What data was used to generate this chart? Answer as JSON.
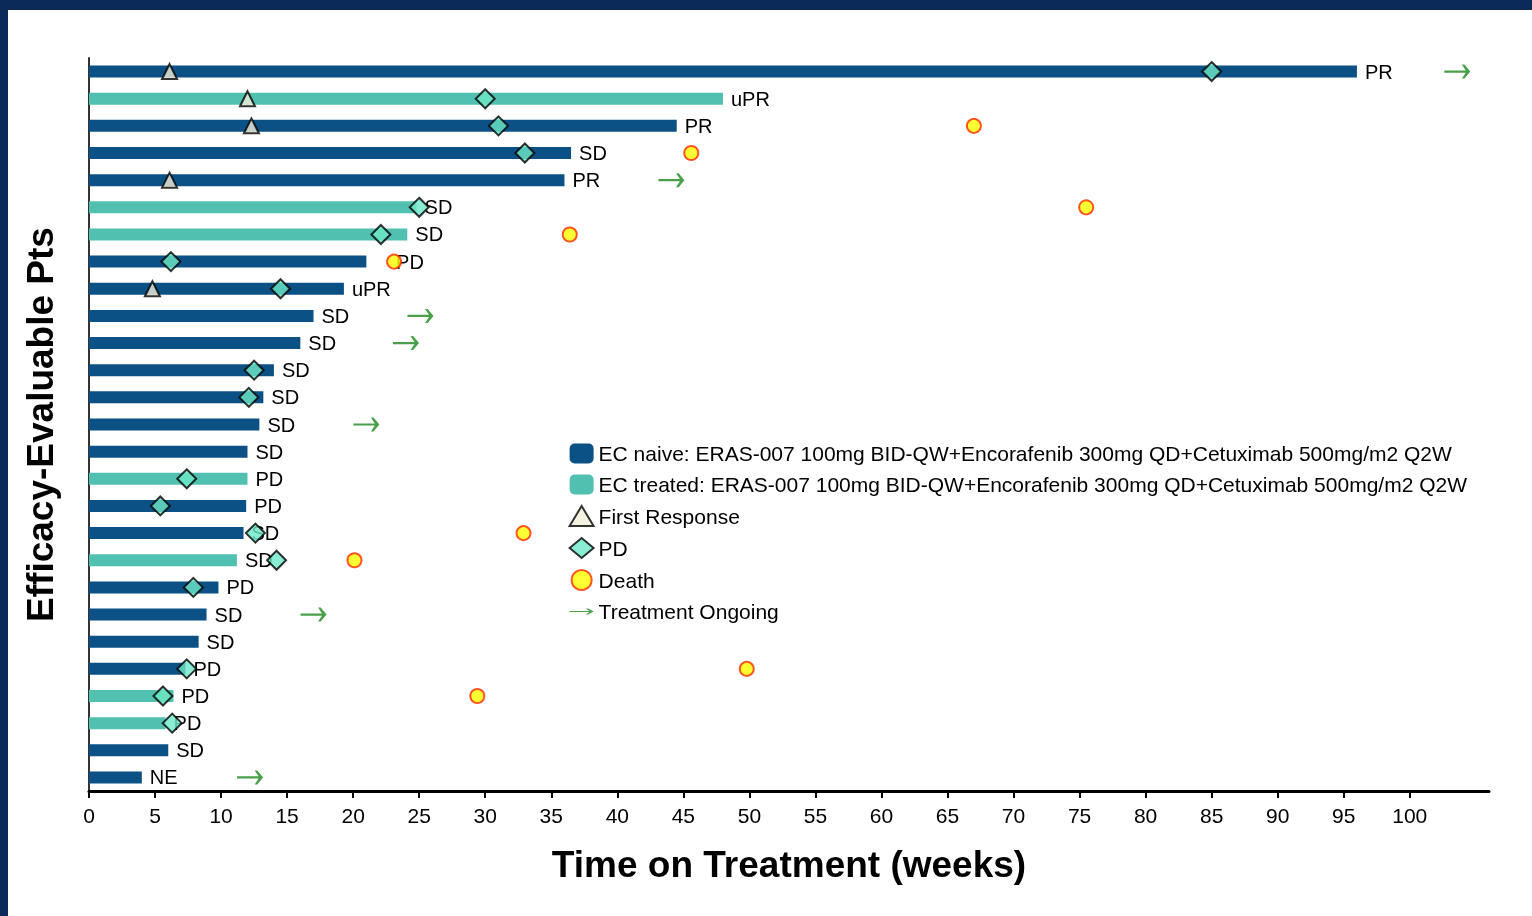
{
  "chart_data": {
    "type": "bar",
    "orientation": "horizontal",
    "xlabel": "Time on Treatment (weeks)",
    "ylabel": "Efficacy-Evaluable Pts",
    "categories": [
      null,
      null,
      null,
      null,
      null,
      null,
      null,
      null,
      null,
      null,
      null,
      null,
      null,
      null,
      null,
      null,
      null,
      null,
      null,
      null,
      null,
      null,
      null,
      null,
      null,
      null,
      null
    ],
    "xlim": [
      0,
      106
    ],
    "xticks": [
      0,
      5,
      10,
      15,
      20,
      25,
      30,
      35,
      40,
      45,
      50,
      55,
      60,
      65,
      70,
      75,
      80,
      85,
      90,
      95,
      100
    ],
    "legend": "right",
    "grid": false,
    "series": [
      {
        "name": "EC naive: ERAS-007 100mg BID-QW+Encorafenib 300mg QD+Cetuximab 500mg/m2 Q2W",
        "color": "#0b5185",
        "values": [
          96,
          null,
          44.5,
          36.5,
          36,
          null,
          null,
          21,
          19.3,
          17,
          16,
          14,
          13.2,
          12.9,
          12,
          null,
          11.9,
          11.7,
          null,
          9.8,
          8.9,
          8.3,
          7.3,
          null,
          null,
          6,
          4
        ],
        "value_labels": [
          "PR",
          null,
          "PR",
          "SD",
          "PR",
          null,
          null,
          "PD",
          "uPR",
          "SD",
          "SD",
          "SD",
          "SD",
          "SD",
          "SD",
          null,
          "PD",
          "SD",
          null,
          "PD",
          "SD",
          "SD",
          "PD",
          null,
          null,
          "SD",
          "NE"
        ]
      },
      {
        "name": "EC treated: ERAS-007 100mg BID-QW+Encorafenib 300mg QD+Cetuximab 500mg/m2 Q2W",
        "color": "#52c0b0",
        "values": [
          null,
          48,
          null,
          null,
          null,
          24.8,
          24.1,
          null,
          null,
          null,
          null,
          null,
          null,
          null,
          null,
          12,
          null,
          null,
          11.2,
          null,
          null,
          null,
          null,
          6.4,
          5.8,
          null,
          null
        ],
        "value_labels": [
          null,
          "uPR",
          null,
          null,
          null,
          "SD",
          "SD",
          null,
          null,
          null,
          null,
          null,
          null,
          null,
          null,
          "PD",
          null,
          null,
          "SD",
          null,
          null,
          null,
          null,
          "PD",
          "PD",
          null,
          null
        ]
      },
      {
        "name": "First Response",
        "type": "scatter",
        "marker": "triangle",
        "color": "#f3efd9",
        "values": [
          6.1,
          12,
          12.3,
          null,
          6.1,
          null,
          null,
          null,
          4.8,
          null,
          null,
          null,
          null,
          null,
          null,
          null,
          null,
          null,
          null,
          null,
          null,
          null,
          null,
          null,
          null,
          null,
          null
        ]
      },
      {
        "name": "PD",
        "type": "scatter",
        "marker": "diamond",
        "color": "#6ee8c8",
        "values": [
          85,
          30,
          31,
          33,
          null,
          25,
          22.1,
          6.2,
          14.5,
          null,
          null,
          12.5,
          12.1,
          null,
          null,
          7.4,
          5.4,
          12.6,
          14.2,
          7.9,
          null,
          null,
          7.4,
          5.6,
          6.3,
          null,
          null
        ]
      },
      {
        "name": "Death",
        "type": "scatter",
        "marker": "circle",
        "color": "#ffff00",
        "values": [
          null,
          null,
          67,
          45.6,
          null,
          75.5,
          36.4,
          23.1,
          null,
          null,
          null,
          null,
          null,
          null,
          null,
          null,
          null,
          32.9,
          20.1,
          null,
          null,
          null,
          49.8,
          29.4,
          null,
          null,
          null
        ]
      },
      {
        "name": "Treatment Ongoing",
        "type": "scatter",
        "color": "#1a8a1a",
        "values": [
          103.6,
          null,
          null,
          null,
          44.1,
          null,
          null,
          null,
          null,
          25.1,
          24,
          null,
          null,
          21,
          null,
          null,
          null,
          null,
          null,
          null,
          17,
          null,
          null,
          null,
          null,
          null,
          12.2
        ]
      }
    ]
  }
}
